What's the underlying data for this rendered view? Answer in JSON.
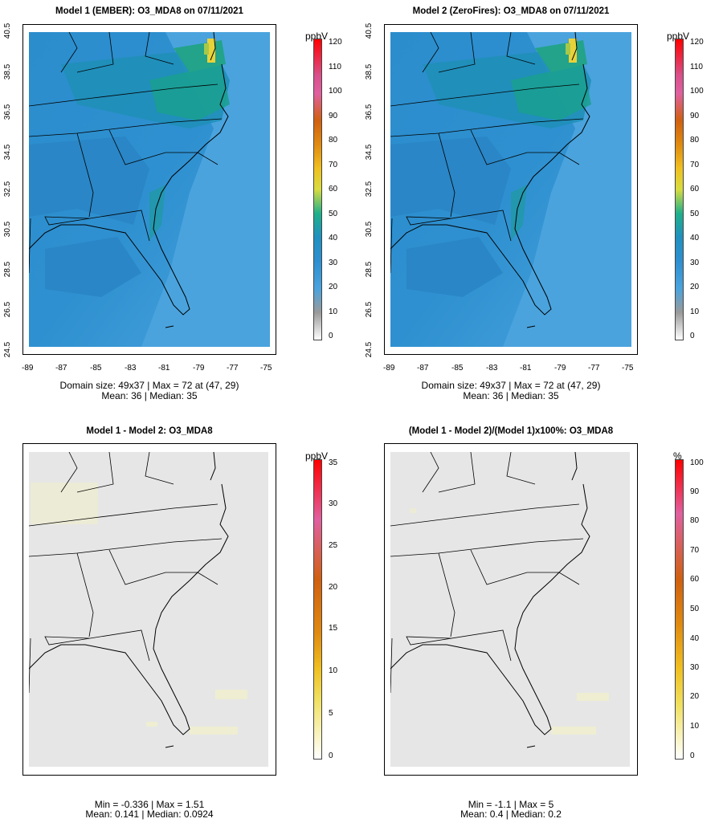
{
  "panels": [
    {
      "id": "p1",
      "title": "Model 1 (EMBER): O3_MDA8 on 07/11/2021",
      "stats_line1": "Domain size: 49x37 | Max = 72 at (47, 29)",
      "stats_line2": "Mean: 36 |  Median: 35",
      "unit": "ppbV",
      "colorbar_labels": [
        "120",
        "110",
        "100",
        "90",
        "80",
        "70",
        "60",
        "50",
        "40",
        "30",
        "20",
        "10",
        "0"
      ],
      "x_ticks": [
        "-89",
        "-87",
        "-85",
        "-83",
        "-81",
        "-79",
        "-77",
        "-75"
      ],
      "y_ticks": [
        "40.5",
        "38.5",
        "36.5",
        "34.5",
        "32.5",
        "30.5",
        "28.5",
        "26.5",
        "24.5"
      ]
    },
    {
      "id": "p2",
      "title": "Model 2 (ZeroFires): O3_MDA8 on 07/11/2021",
      "stats_line1": "Domain size: 49x37 | Max = 72 at (47, 29)",
      "stats_line2": "Mean: 36 |  Median: 35",
      "unit": "ppbV",
      "colorbar_labels": [
        "120",
        "110",
        "100",
        "90",
        "80",
        "70",
        "60",
        "50",
        "40",
        "30",
        "20",
        "10",
        "0"
      ],
      "x_ticks": [
        "-89",
        "-87",
        "-85",
        "-83",
        "-81",
        "-79",
        "-77",
        "-75"
      ],
      "y_ticks": [
        "40.5",
        "38.5",
        "36.5",
        "34.5",
        "32.5",
        "30.5",
        "28.5",
        "26.5",
        "24.5"
      ]
    },
    {
      "id": "p3",
      "title": "Model 1 - Model 2: O3_MDA8",
      "stats_line1": "Min = -0.336 | Max = 1.51",
      "stats_line2": "Mean: 0.141 |  Median: 0.0924",
      "unit": "ppbV",
      "colorbar_labels": [
        "35",
        "30",
        "25",
        "20",
        "15",
        "10",
        "5",
        "0"
      ]
    },
    {
      "id": "p4",
      "title": "(Model 1 - Model 2)/(Model 1)x100%: O3_MDA8",
      "stats_line1": "Min = -1.1 | Max = 5",
      "stats_line2": "Mean: 0.4 |  Median: 0.2",
      "unit": "%",
      "colorbar_labels": [
        "100",
        "90",
        "80",
        "70",
        "60",
        "50",
        "40",
        "30",
        "20",
        "10",
        "0"
      ]
    }
  ],
  "colors": {
    "background_water": "#4aa3dd",
    "mid_blue": "#2e8fcf",
    "dark_blue": "#1a6fb5",
    "green": "#19a58a",
    "yellow": "#f0d330",
    "diff_bg": "#e6e6e6",
    "diff_yellow": "#efeed2"
  }
}
